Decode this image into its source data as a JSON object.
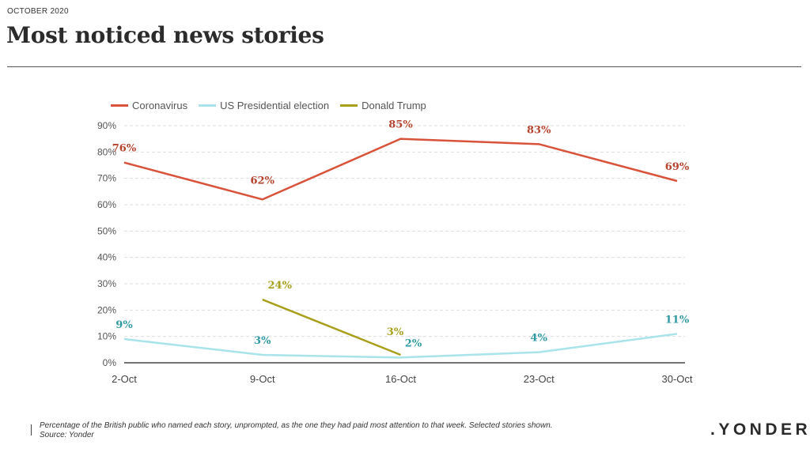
{
  "header": {
    "kicker": "OCTOBER 2020",
    "title": "Most noticed news stories"
  },
  "chart_data": {
    "type": "line",
    "categories": [
      "2-Oct",
      "9-Oct",
      "16-Oct",
      "23-Oct",
      "30-Oct"
    ],
    "ylim": [
      0,
      90
    ],
    "yticks": [
      "0%",
      "10%",
      "20%",
      "30%",
      "40%",
      "50%",
      "60%",
      "70%",
      "80%",
      "90%"
    ],
    "grid": true,
    "legend_position": "top-left",
    "series": [
      {
        "name": "Coronavirus",
        "color": "#d9523a",
        "label_color": "#b5432e",
        "values": [
          76,
          62,
          85,
          83,
          69
        ],
        "labels": [
          "76%",
          "62%",
          "85%",
          "83%",
          "69%"
        ]
      },
      {
        "name": "US Presidential election",
        "color": "#a8e4ea",
        "label_color": "#2f9aa4",
        "values": [
          9,
          3,
          2,
          4,
          11
        ],
        "labels": [
          "9%",
          "3%",
          "2%",
          "4%",
          "11%"
        ]
      },
      {
        "name": "Donald Trump",
        "color": "#a8a01c",
        "label_color": "#a8a01c",
        "values": [
          null,
          24,
          3,
          null,
          null
        ],
        "labels": [
          "",
          "24%",
          "3%",
          "",
          ""
        ]
      }
    ]
  },
  "footer": {
    "note": "Percentage of the British public who named each story, unprompted, as the one they had paid most attention to that week. Selected stories shown.",
    "source": "Source: Yonder",
    "brand": ".YONDER"
  }
}
